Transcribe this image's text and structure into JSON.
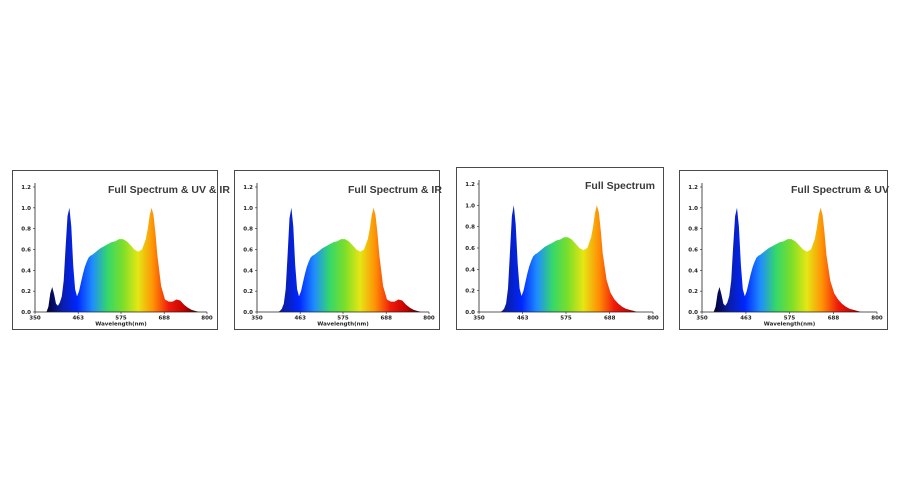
{
  "colors": {
    "spectrum_stops": [
      "#000030",
      "#0a1da8",
      "#0026ff",
      "#1f8cff",
      "#35d86a",
      "#7cde2a",
      "#e6e614",
      "#ff8f05",
      "#f01a0a",
      "#c40000",
      "#2a0000"
    ],
    "axis": "#222222",
    "border": "#4a4a4a"
  },
  "chart_data": [
    {
      "type": "area",
      "title": "Full Spectrum & UV & IR",
      "xlabel": "Wavelength(nm)",
      "xlim": [
        350,
        800
      ],
      "ylim": [
        0,
        1.2
      ],
      "xticks": [
        350,
        463,
        575,
        688,
        800
      ],
      "yticks": [
        "0.0",
        "0.2",
        "0.4",
        "0.6",
        "0.8",
        "1.0",
        "1.2"
      ],
      "grid": false,
      "x": [
        350,
        380,
        385,
        390,
        395,
        400,
        405,
        410,
        415,
        420,
        425,
        430,
        435,
        440,
        445,
        450,
        455,
        460,
        465,
        470,
        475,
        480,
        485,
        490,
        495,
        500,
        510,
        520,
        530,
        540,
        550,
        560,
        570,
        580,
        590,
        600,
        610,
        620,
        630,
        640,
        645,
        650,
        655,
        660,
        665,
        670,
        680,
        690,
        700,
        710,
        720,
        730,
        740,
        750,
        760,
        770,
        780,
        800
      ],
      "y": [
        0.0,
        0.0,
        0.05,
        0.18,
        0.24,
        0.17,
        0.08,
        0.06,
        0.09,
        0.15,
        0.3,
        0.62,
        0.92,
        1.0,
        0.82,
        0.45,
        0.22,
        0.15,
        0.2,
        0.28,
        0.36,
        0.43,
        0.48,
        0.52,
        0.54,
        0.55,
        0.58,
        0.61,
        0.63,
        0.65,
        0.67,
        0.68,
        0.7,
        0.7,
        0.68,
        0.64,
        0.6,
        0.58,
        0.6,
        0.7,
        0.8,
        0.93,
        1.0,
        0.93,
        0.76,
        0.55,
        0.25,
        0.12,
        0.1,
        0.1,
        0.12,
        0.11,
        0.07,
        0.04,
        0.02,
        0.01,
        0.0,
        0.0
      ]
    },
    {
      "type": "area",
      "title": "Full Spectrum & IR",
      "xlabel": "Wavelength(nm)",
      "xlim": [
        350,
        800
      ],
      "ylim": [
        0,
        1.2
      ],
      "xticks": [
        350,
        463,
        575,
        688,
        800
      ],
      "yticks": [
        "0.0",
        "0.2",
        "0.4",
        "0.6",
        "0.8",
        "1.0",
        "1.2"
      ],
      "grid": false,
      "x": [
        350,
        405,
        410,
        415,
        420,
        425,
        430,
        435,
        440,
        445,
        450,
        455,
        460,
        465,
        470,
        475,
        480,
        485,
        490,
        495,
        500,
        510,
        520,
        530,
        540,
        550,
        560,
        570,
        580,
        590,
        600,
        610,
        620,
        630,
        640,
        645,
        650,
        655,
        660,
        665,
        670,
        680,
        690,
        700,
        710,
        720,
        730,
        740,
        750,
        760,
        770,
        780,
        800
      ],
      "y": [
        0.0,
        0.0,
        0.01,
        0.03,
        0.08,
        0.22,
        0.55,
        0.9,
        1.0,
        0.82,
        0.45,
        0.22,
        0.15,
        0.2,
        0.28,
        0.36,
        0.43,
        0.48,
        0.52,
        0.54,
        0.55,
        0.58,
        0.61,
        0.63,
        0.65,
        0.67,
        0.68,
        0.7,
        0.7,
        0.68,
        0.64,
        0.6,
        0.58,
        0.6,
        0.7,
        0.8,
        0.93,
        1.0,
        0.93,
        0.76,
        0.55,
        0.25,
        0.12,
        0.1,
        0.1,
        0.12,
        0.11,
        0.07,
        0.04,
        0.02,
        0.01,
        0.0,
        0.0
      ]
    },
    {
      "type": "area",
      "title": "Full Spectrum",
      "xlabel": "",
      "xlim": [
        350,
        800
      ],
      "ylim": [
        0,
        1.2
      ],
      "xticks": [
        350,
        463,
        575,
        688,
        800
      ],
      "yticks": [
        "0.0",
        "0.2",
        "0.4",
        "0.6",
        "0.8",
        "1.0",
        "1.2"
      ],
      "grid": false,
      "x": [
        350,
        405,
        410,
        415,
        420,
        425,
        430,
        435,
        440,
        445,
        450,
        455,
        460,
        465,
        470,
        475,
        480,
        485,
        490,
        495,
        500,
        510,
        520,
        530,
        540,
        550,
        560,
        570,
        580,
        590,
        600,
        610,
        620,
        630,
        640,
        645,
        650,
        655,
        660,
        665,
        670,
        680,
        690,
        700,
        710,
        720,
        730,
        740,
        750,
        760,
        770,
        780,
        800
      ],
      "y": [
        0.0,
        0.0,
        0.01,
        0.03,
        0.08,
        0.22,
        0.55,
        0.9,
        1.0,
        0.82,
        0.45,
        0.22,
        0.15,
        0.2,
        0.28,
        0.36,
        0.43,
        0.48,
        0.52,
        0.54,
        0.55,
        0.58,
        0.61,
        0.63,
        0.65,
        0.67,
        0.68,
        0.7,
        0.7,
        0.68,
        0.64,
        0.6,
        0.58,
        0.6,
        0.7,
        0.8,
        0.93,
        1.0,
        0.93,
        0.76,
        0.55,
        0.3,
        0.18,
        0.12,
        0.08,
        0.05,
        0.03,
        0.02,
        0.01,
        0.0,
        0.0,
        0.0,
        0.0
      ]
    },
    {
      "type": "area",
      "title": "Full Spectrum & UV",
      "xlabel": "Wavelength(nm)",
      "xlim": [
        350,
        800
      ],
      "ylim": [
        0,
        1.2
      ],
      "xticks": [
        350,
        463,
        575,
        688,
        800
      ],
      "yticks": [
        "0.0",
        "0.2",
        "0.4",
        "0.6",
        "0.8",
        "1.0",
        "1.2"
      ],
      "grid": false,
      "x": [
        350,
        380,
        385,
        390,
        395,
        400,
        405,
        410,
        415,
        420,
        425,
        430,
        435,
        440,
        445,
        450,
        455,
        460,
        465,
        470,
        475,
        480,
        485,
        490,
        495,
        500,
        510,
        520,
        530,
        540,
        550,
        560,
        570,
        580,
        590,
        600,
        610,
        620,
        630,
        640,
        645,
        650,
        655,
        660,
        665,
        670,
        680,
        690,
        700,
        710,
        720,
        730,
        740,
        750,
        760,
        770,
        780,
        800
      ],
      "y": [
        0.0,
        0.0,
        0.05,
        0.18,
        0.24,
        0.17,
        0.08,
        0.06,
        0.09,
        0.15,
        0.3,
        0.62,
        0.92,
        1.0,
        0.82,
        0.45,
        0.22,
        0.15,
        0.2,
        0.28,
        0.36,
        0.43,
        0.48,
        0.52,
        0.54,
        0.55,
        0.58,
        0.61,
        0.63,
        0.65,
        0.67,
        0.68,
        0.7,
        0.7,
        0.68,
        0.64,
        0.6,
        0.58,
        0.6,
        0.7,
        0.8,
        0.93,
        1.0,
        0.93,
        0.76,
        0.55,
        0.3,
        0.18,
        0.12,
        0.08,
        0.05,
        0.03,
        0.02,
        0.01,
        0.0,
        0.0,
        0.0,
        0.0
      ]
    }
  ]
}
